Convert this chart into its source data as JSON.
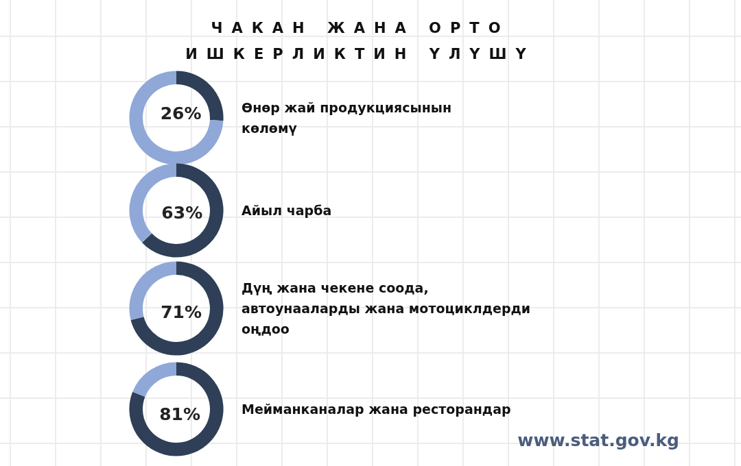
{
  "chart_data": [
    {
      "type": "donut",
      "title": "ЧАКАН ЖАНА ОРТО\nИШКЕРЛИКТИН ҮЛҮШҮ",
      "categories": [
        "Өнөр жай продукциясынын\nкөлөмү",
        null
      ],
      "values": [
        26,
        74
      ],
      "colors": [
        "#2e3f57",
        "#8fa8d8"
      ],
      "value_labels": [
        "26%",
        null
      ],
      "legend": false
    },
    {
      "type": "donut",
      "categories": [
        "Айыл чарба",
        null
      ],
      "values": [
        63,
        37
      ],
      "colors": [
        "#2e3f57",
        "#8fa8d8"
      ],
      "value_labels": [
        "63%",
        null
      ],
      "legend": false
    },
    {
      "type": "donut",
      "categories": [
        "Дүң жана чекене соода,\nавтоунааларды жана мотоциклдерди\noңдоо",
        null
      ],
      "values": [
        71,
        29
      ],
      "colors": [
        "#2e3f57",
        "#8fa8d8"
      ],
      "value_labels": [
        "71%",
        null
      ],
      "legend": false
    },
    {
      "type": "donut",
      "categories": [
        "Мейманканалар жана ресторандар",
        null
      ],
      "values": [
        81,
        19
      ],
      "colors": [
        "#2e3f57",
        "#8fa8d8"
      ],
      "value_labels": [
        "81%",
        null
      ],
      "legend": false,
      "annotations": [
        "www.stat.gov.kg"
      ]
    }
  ]
}
